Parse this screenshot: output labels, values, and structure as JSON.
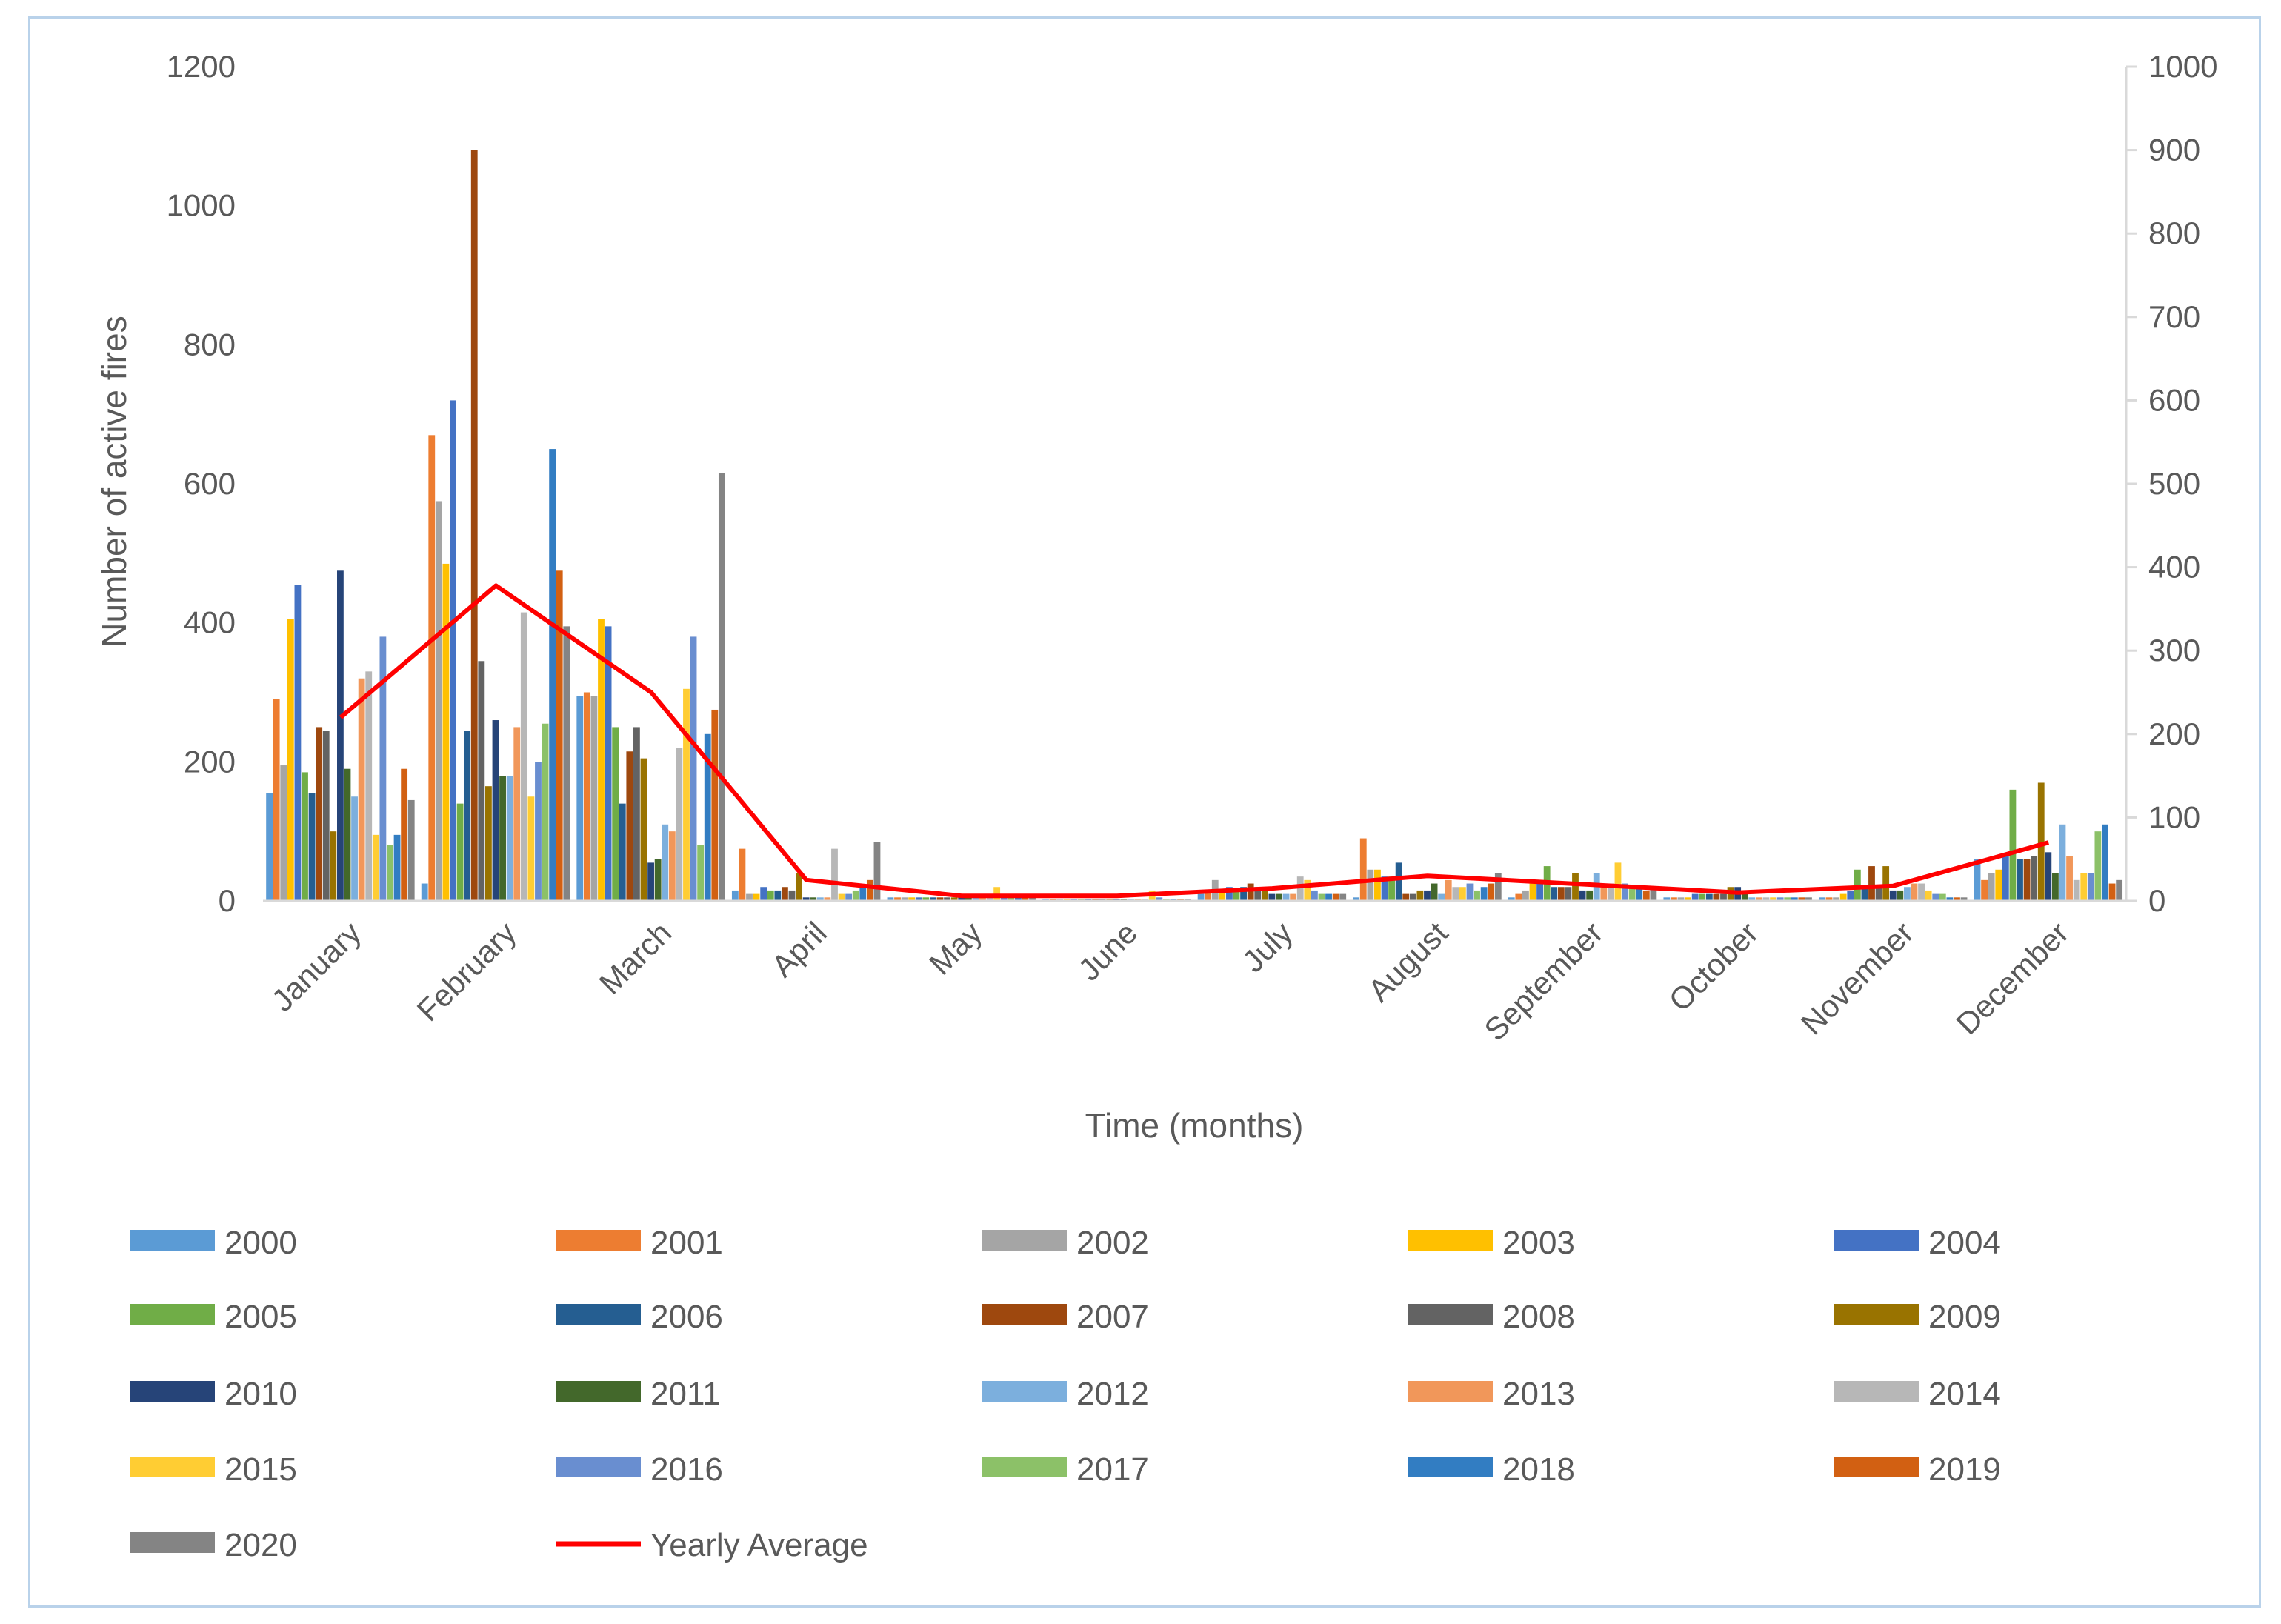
{
  "chart_data": {
    "type": "bar",
    "title": "",
    "xlabel": "Time (months)",
    "ylabel": "Number of active fires",
    "ylim": [
      0,
      1200
    ],
    "y2lim": [
      0,
      1000
    ],
    "yticks": [
      0,
      200,
      400,
      600,
      800,
      1000,
      1200
    ],
    "y2ticks": [
      0,
      100,
      200,
      300,
      400,
      500,
      600,
      700,
      800,
      900,
      1000
    ],
    "categories": [
      "January",
      "February",
      "March",
      "April",
      "May",
      "June",
      "July",
      "August",
      "September",
      "October",
      "November",
      "December"
    ],
    "legend_position": "bottom",
    "grid": false,
    "series": [
      {
        "name": "2000",
        "color": "#5b9bd5",
        "values": [
          155,
          25,
          295,
          15,
          5,
          2,
          10,
          5,
          5,
          5,
          5,
          60
        ]
      },
      {
        "name": "2001",
        "color": "#ed7d31",
        "values": [
          290,
          670,
          300,
          75,
          5,
          3,
          15,
          90,
          10,
          5,
          5,
          30
        ]
      },
      {
        "name": "2002",
        "color": "#a5a5a5",
        "values": [
          195,
          575,
          295,
          10,
          5,
          2,
          30,
          45,
          15,
          5,
          5,
          40
        ]
      },
      {
        "name": "2003",
        "color": "#ffc000",
        "values": [
          405,
          485,
          405,
          10,
          5,
          2,
          15,
          45,
          25,
          5,
          10,
          45
        ]
      },
      {
        "name": "2004",
        "color": "#4472c4",
        "values": [
          455,
          720,
          395,
          20,
          5,
          2,
          20,
          35,
          30,
          10,
          15,
          65
        ]
      },
      {
        "name": "2005",
        "color": "#70ad47",
        "values": [
          185,
          140,
          250,
          15,
          5,
          2,
          15,
          35,
          50,
          10,
          45,
          160
        ]
      },
      {
        "name": "2006",
        "color": "#255e91",
        "values": [
          155,
          245,
          140,
          15,
          5,
          2,
          20,
          55,
          20,
          10,
          20,
          60
        ]
      },
      {
        "name": "2007",
        "color": "#9e480e",
        "values": [
          250,
          1080,
          215,
          20,
          5,
          2,
          25,
          10,
          20,
          10,
          50,
          60
        ]
      },
      {
        "name": "2008",
        "color": "#636363",
        "values": [
          245,
          345,
          250,
          15,
          5,
          2,
          20,
          10,
          20,
          10,
          20,
          65
        ]
      },
      {
        "name": "2009",
        "color": "#997300",
        "values": [
          100,
          165,
          205,
          40,
          5,
          2,
          15,
          15,
          40,
          20,
          50,
          170
        ]
      },
      {
        "name": "2010",
        "color": "#264478",
        "values": [
          475,
          260,
          55,
          5,
          5,
          2,
          10,
          15,
          15,
          20,
          15,
          70
        ]
      },
      {
        "name": "2011",
        "color": "#43682b",
        "values": [
          190,
          180,
          60,
          5,
          5,
          2,
          10,
          25,
          15,
          10,
          15,
          40
        ]
      },
      {
        "name": "2012",
        "color": "#7cafdd",
        "values": [
          150,
          180,
          110,
          5,
          5,
          2,
          10,
          10,
          40,
          5,
          20,
          110
        ]
      },
      {
        "name": "2013",
        "color": "#f1975a",
        "values": [
          320,
          250,
          100,
          5,
          5,
          2,
          10,
          30,
          25,
          5,
          25,
          65
        ]
      },
      {
        "name": "2014",
        "color": "#b7b7b7",
        "values": [
          330,
          415,
          220,
          75,
          5,
          2,
          35,
          20,
          25,
          5,
          25,
          30
        ]
      },
      {
        "name": "2015",
        "color": "#ffcd33",
        "values": [
          95,
          150,
          305,
          10,
          20,
          15,
          30,
          20,
          55,
          5,
          15,
          40
        ]
      },
      {
        "name": "2016",
        "color": "#698ed0",
        "values": [
          380,
          200,
          380,
          10,
          5,
          5,
          15,
          25,
          25,
          5,
          10,
          40
        ]
      },
      {
        "name": "2017",
        "color": "#8cc168",
        "values": [
          80,
          255,
          80,
          15,
          5,
          2,
          10,
          15,
          20,
          5,
          10,
          100
        ]
      },
      {
        "name": "2018",
        "color": "#327dc2",
        "values": [
          95,
          650,
          240,
          20,
          5,
          2,
          10,
          20,
          20,
          5,
          5,
          110
        ]
      },
      {
        "name": "2019",
        "color": "#d26012",
        "values": [
          190,
          475,
          275,
          30,
          5,
          2,
          10,
          25,
          15,
          5,
          5,
          25
        ]
      },
      {
        "name": "2020",
        "color": "#848484",
        "values": [
          145,
          395,
          615,
          85,
          5,
          2,
          10,
          40,
          20,
          5,
          5,
          30
        ]
      }
    ],
    "line_series": {
      "name": "Yearly Average",
      "color": "#ff0000",
      "axis": "secondary",
      "values": [
        220,
        378,
        250,
        25,
        6,
        6,
        15,
        30,
        20,
        10,
        18,
        70
      ]
    }
  }
}
